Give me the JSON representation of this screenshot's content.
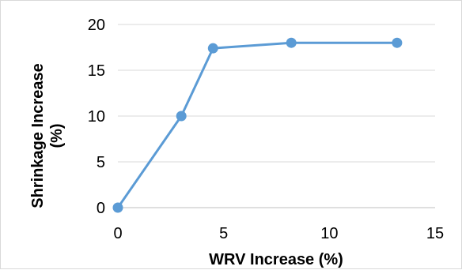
{
  "chart_data": {
    "type": "line",
    "title": "",
    "xlabel": "WRV Increase (%)",
    "ylabel_line1": "Shrinkage Increase",
    "ylabel_line2": "(%)",
    "xlim": [
      0,
      15
    ],
    "ylim": [
      0,
      20
    ],
    "x_ticks": [
      0,
      5,
      10,
      15
    ],
    "y_ticks": [
      0,
      5,
      10,
      15,
      20
    ],
    "grid": {
      "horizontal": true,
      "vertical": false
    },
    "legend": "none",
    "series": [
      {
        "color": "#5b9bd5",
        "x": [
          0,
          3.0,
          4.5,
          8.2,
          13.2
        ],
        "y": [
          0,
          10.0,
          17.4,
          18.0,
          18.0
        ]
      }
    ]
  }
}
